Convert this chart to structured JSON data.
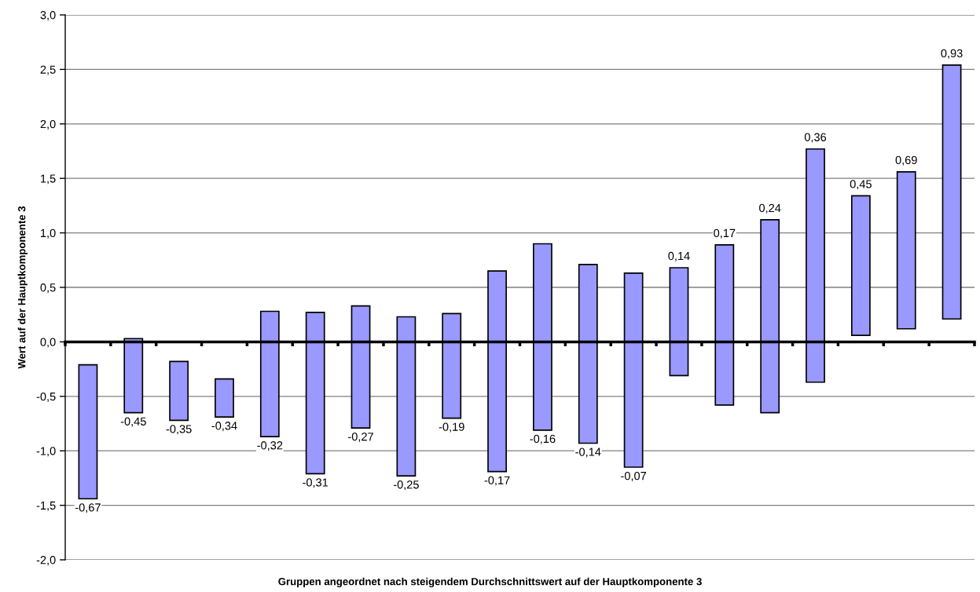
{
  "chart_data": {
    "type": "bar",
    "xlabel": "Gruppen angeordnet nach steigendem Durchschnittswert auf der Hauptkomponente 3",
    "ylabel": "Wert auf der Hauptkomponente 3",
    "categories": [
      null,
      null,
      null,
      null,
      null,
      null,
      null,
      null,
      null,
      null,
      null,
      null,
      null,
      null,
      null,
      null,
      null,
      null,
      null,
      null
    ],
    "base": [
      -1.44,
      -0.65,
      -0.72,
      -0.69,
      -0.87,
      -1.21,
      -0.79,
      -1.23,
      -0.7,
      -1.19,
      -0.81,
      -0.93,
      -1.15,
      -0.31,
      -0.58,
      -0.65,
      -0.37,
      0.06,
      0.12,
      0.21
    ],
    "values": [
      1.23,
      0.68,
      0.54,
      0.35,
      1.15,
      1.48,
      1.12,
      1.46,
      0.96,
      1.84,
      1.71,
      1.64,
      1.78,
      0.99,
      1.47,
      1.77,
      2.14,
      1.28,
      1.44,
      2.33
    ],
    "color": "#9999ff",
    "annotations": [
      {
        "text": "-0,67",
        "y": -1.44
      },
      {
        "text": "-0,45",
        "y": -0.65
      },
      {
        "text": "-0,35",
        "y": -0.72
      },
      {
        "text": "-0,34",
        "y": -0.69
      },
      {
        "text": "-0,32",
        "y": -0.87
      },
      {
        "text": "-0,31",
        "y": -1.21
      },
      {
        "text": "-0,27",
        "y": -0.79
      },
      {
        "text": "-0,25",
        "y": -1.23
      },
      {
        "text": "-0,19",
        "y": -0.7
      },
      {
        "text": "-0,17",
        "y": -1.19
      },
      {
        "text": "-0,16",
        "y": -0.81
      },
      {
        "text": "-0,14",
        "y": -0.93
      },
      {
        "text": "-0,07",
        "y": -1.15
      },
      {
        "text": "0,14",
        "y": 0.68
      },
      {
        "text": "0,17",
        "y": 0.89
      },
      {
        "text": "0,24",
        "y": 1.12
      },
      {
        "text": "0,36",
        "y": 1.77
      },
      {
        "text": "0,45",
        "y": 1.34
      },
      {
        "text": "0,69",
        "y": 1.56
      },
      {
        "text": "0,93",
        "y": 2.54
      }
    ],
    "ylim": [
      -2,
      3
    ],
    "yticks": [
      {
        "value": -2,
        "label": "-2,0"
      },
      {
        "value": -1.5,
        "label": "-1,5"
      },
      {
        "value": -1,
        "label": "-1,0"
      },
      {
        "value": -0.5,
        "label": "-0,5"
      },
      {
        "value": 0,
        "label": "0,0"
      },
      {
        "value": 0.5,
        "label": "0,5"
      },
      {
        "value": 1,
        "label": "1,0"
      },
      {
        "value": 1.5,
        "label": "1,5"
      },
      {
        "value": 2,
        "label": "2,0"
      },
      {
        "value": 2.5,
        "label": "2,5"
      },
      {
        "value": 3,
        "label": "3,0"
      }
    ],
    "grid": "y",
    "tick_labels": "y"
  }
}
